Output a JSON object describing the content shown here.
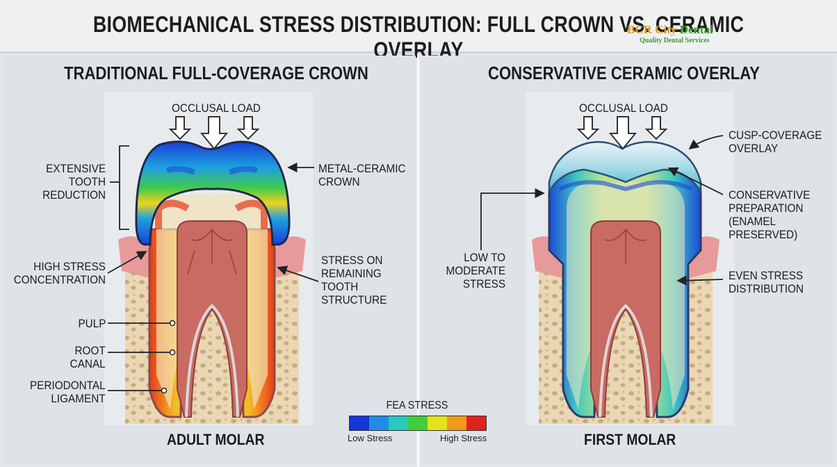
{
  "title": "BIOMECHANICAL STRESS DISTRIBUTION: FULL CROWN VS. CERAMIC OVERLAY",
  "logo": {
    "brand_a": "BCR City ",
    "brand_b": "Dental",
    "tagline": "Quality Dental Services"
  },
  "left_panel": {
    "heading": "TRADITIONAL FULL-COVERAGE CROWN",
    "load_label": "OCCLUSAL LOAD",
    "labels": {
      "reduction": "EXTENSIVE\nTOOTH\nREDUCTION",
      "crown": "METAL-CERAMIC\nCROWN",
      "high_stress": "HIGH STRESS\nCONCENTRATION",
      "remaining": "STRESS ON\nREMAINING\nTOOTH\nSTRUCTURE",
      "pulp": "PULP",
      "root_canal": "ROOT\nCANAL",
      "ligament": "PERIODONTAL\nLIGAMENT"
    },
    "bottom": "ADULT MOLAR"
  },
  "right_panel": {
    "heading": "CONSERVATIVE CERAMIC OVERLAY",
    "load_label": "OCCLUSAL LOAD",
    "labels": {
      "overlay": "CUSP-COVERAGE\nOVERLAY",
      "prep": "CONSERVATIVE\nPREPARATION\n(ENAMEL\nPRESERVED)",
      "low": "LOW TO\nMODERATE\nSTRESS",
      "even": "EVEN STRESS\nDISTRIBUTION"
    },
    "bottom": "FIRST MOLAR"
  },
  "legend": {
    "title": "FEA STRESS",
    "low": "Low Stress",
    "high": "High Stress",
    "colors": [
      "#1436d8",
      "#1f8de8",
      "#28c9c0",
      "#44cc3a",
      "#e4e21a",
      "#f29a1a",
      "#e0221c"
    ]
  }
}
